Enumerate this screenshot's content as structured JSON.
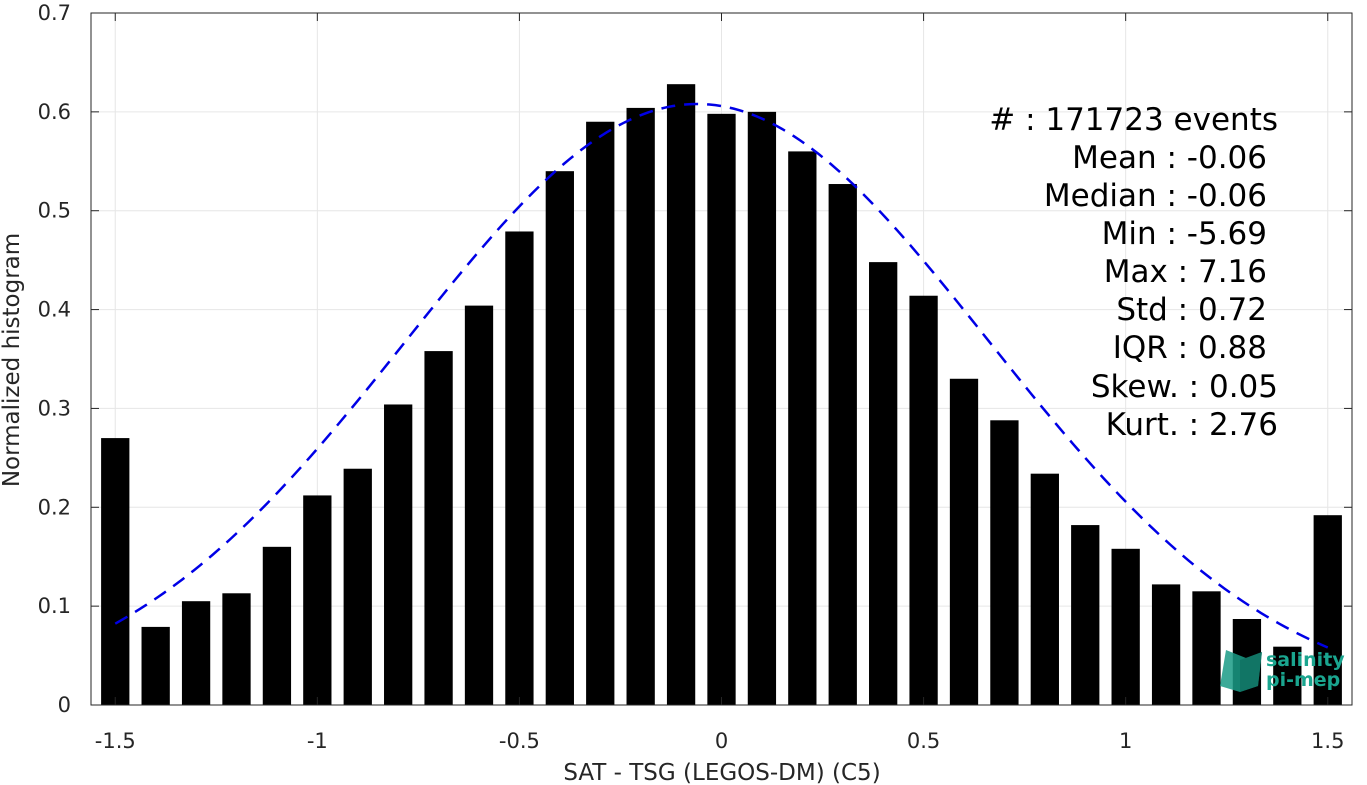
{
  "chart_data": {
    "type": "bar",
    "xlabel": "SAT - TSG (LEGOS-DM) (C5)",
    "ylabel": "Normalized histogram",
    "xlim": [
      -1.56,
      1.56
    ],
    "ylim": [
      0,
      0.7
    ],
    "xticks": [
      "-1.5",
      "-1",
      "-0.5",
      "0",
      "0.5",
      "1",
      "1.5"
    ],
    "xtick_values": [
      -1.5,
      -1,
      -0.5,
      0,
      0.5,
      1,
      1.5
    ],
    "yticks": [
      "0",
      "0.1",
      "0.2",
      "0.3",
      "0.4",
      "0.5",
      "0.6",
      "0.7"
    ],
    "ytick_values": [
      0,
      0.1,
      0.2,
      0.3,
      0.4,
      0.5,
      0.6,
      0.7
    ],
    "grid": true,
    "bar_width": 0.07,
    "bar_color": "#000000",
    "bars": {
      "x": [
        -1.5,
        -1.4,
        -1.3,
        -1.2,
        -1.1,
        -1.0,
        -0.9,
        -0.8,
        -0.7,
        -0.6,
        -0.5,
        -0.4,
        -0.3,
        -0.2,
        -0.1,
        0.0,
        0.1,
        0.2,
        0.3,
        0.4,
        0.5,
        0.6,
        0.7,
        0.8,
        0.9,
        1.0,
        1.1,
        1.2,
        1.3,
        1.4,
        1.5
      ],
      "values": [
        0.27,
        0.079,
        0.105,
        0.113,
        0.16,
        0.212,
        0.239,
        0.304,
        0.358,
        0.404,
        0.479,
        0.54,
        0.59,
        0.604,
        0.628,
        0.598,
        0.6,
        0.56,
        0.527,
        0.448,
        0.414,
        0.33,
        0.288,
        0.234,
        0.182,
        0.158,
        0.122,
        0.115,
        0.087,
        0.059,
        0.192
      ]
    },
    "fit": {
      "type": "gaussian",
      "style": "dashed",
      "color": "#0000e6",
      "mean": -0.06,
      "std": 0.72,
      "x_range": [
        -1.5,
        1.5
      ]
    }
  },
  "stats": {
    "count": "#  : 171723 events",
    "mean": "Mean : -0.06",
    "median": "Median : -0.06",
    "min": "Min : -5.69",
    "max": "Max : 7.16",
    "std": "Std : 0.72",
    "iqr": "IQR : 0.88",
    "skew": "Skew. : 0.05",
    "kurt": "Kurt. : 2.76"
  },
  "logo": {
    "line1": "salinity",
    "line2": "pi-mep"
  }
}
